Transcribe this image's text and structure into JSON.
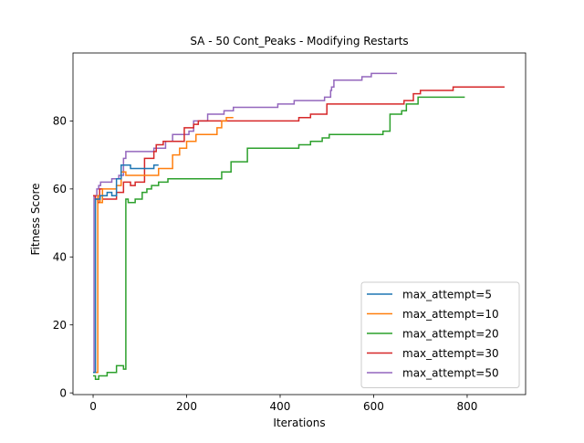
{
  "chart_data": {
    "type": "line",
    "title": "SA - 50 Cont_Peaks - Modifying Restarts",
    "xlabel": "Iterations",
    "ylabel": "Fitness Score",
    "xlim": [
      -43,
      925
    ],
    "ylim": [
      -0.5,
      100
    ],
    "xticks": [
      0,
      200,
      400,
      600,
      800
    ],
    "yticks": [
      0,
      20,
      40,
      60,
      80
    ],
    "grid": false,
    "legend_position": "lower-right",
    "step": "post",
    "series": [
      {
        "name": "max_attempt=50",
        "color": "#9467bd",
        "points": [
          [
            0,
            6
          ],
          [
            2,
            58
          ],
          [
            8,
            60
          ],
          [
            12,
            61
          ],
          [
            16,
            62
          ],
          [
            40,
            63
          ],
          [
            55,
            64
          ],
          [
            65,
            69
          ],
          [
            70,
            71
          ],
          [
            130,
            72
          ],
          [
            155,
            74
          ],
          [
            170,
            76
          ],
          [
            205,
            77
          ],
          [
            215,
            80
          ],
          [
            245,
            82
          ],
          [
            280,
            83
          ],
          [
            300,
            84
          ],
          [
            395,
            85
          ],
          [
            430,
            86
          ],
          [
            495,
            87
          ],
          [
            508,
            89
          ],
          [
            510,
            90
          ],
          [
            515,
            92
          ],
          [
            575,
            93
          ],
          [
            595,
            94
          ],
          [
            650,
            94
          ]
        ]
      },
      {
        "name": "max_attempt=30",
        "color": "#d62728",
        "points": [
          [
            0,
            58
          ],
          [
            5,
            57
          ],
          [
            10,
            56
          ],
          [
            14,
            60
          ],
          [
            20,
            57
          ],
          [
            50,
            59
          ],
          [
            65,
            62
          ],
          [
            80,
            61
          ],
          [
            90,
            62
          ],
          [
            110,
            69
          ],
          [
            130,
            71
          ],
          [
            135,
            73
          ],
          [
            150,
            74
          ],
          [
            195,
            78
          ],
          [
            215,
            79
          ],
          [
            225,
            80
          ],
          [
            440,
            81
          ],
          [
            465,
            82
          ],
          [
            500,
            85
          ],
          [
            665,
            86
          ],
          [
            685,
            88
          ],
          [
            700,
            89
          ],
          [
            770,
            90
          ],
          [
            880,
            90
          ]
        ]
      },
      {
        "name": "max_attempt=20",
        "color": "#2ca02c",
        "points": [
          [
            0,
            5
          ],
          [
            5,
            4
          ],
          [
            12,
            5
          ],
          [
            30,
            6
          ],
          [
            50,
            8
          ],
          [
            65,
            7
          ],
          [
            70,
            57
          ],
          [
            75,
            56
          ],
          [
            90,
            57
          ],
          [
            105,
            59
          ],
          [
            115,
            60
          ],
          [
            125,
            61
          ],
          [
            140,
            62
          ],
          [
            160,
            63
          ],
          [
            275,
            65
          ],
          [
            295,
            68
          ],
          [
            330,
            72
          ],
          [
            440,
            73
          ],
          [
            465,
            74
          ],
          [
            490,
            75
          ],
          [
            505,
            76
          ],
          [
            620,
            77
          ],
          [
            635,
            82
          ],
          [
            660,
            83
          ],
          [
            670,
            85
          ],
          [
            695,
            87
          ],
          [
            795,
            87
          ]
        ]
      },
      {
        "name": "max_attempt=10",
        "color": "#ff7f0e",
        "points": [
          [
            0,
            6
          ],
          [
            10,
            58
          ],
          [
            15,
            56
          ],
          [
            20,
            60
          ],
          [
            50,
            61
          ],
          [
            60,
            65
          ],
          [
            70,
            64
          ],
          [
            140,
            66
          ],
          [
            170,
            70
          ],
          [
            185,
            72
          ],
          [
            200,
            74
          ],
          [
            220,
            76
          ],
          [
            265,
            78
          ],
          [
            275,
            80
          ],
          [
            285,
            81
          ],
          [
            300,
            81
          ]
        ]
      },
      {
        "name": "max_attempt=5",
        "color": "#1f77b4",
        "points": [
          [
            0,
            6
          ],
          [
            5,
            57
          ],
          [
            15,
            58
          ],
          [
            30,
            59
          ],
          [
            40,
            58
          ],
          [
            50,
            63
          ],
          [
            60,
            67
          ],
          [
            80,
            66
          ],
          [
            120,
            66
          ],
          [
            130,
            67
          ],
          [
            140,
            67
          ]
        ]
      }
    ],
    "legend_entries": [
      {
        "name": "max_attempt=5",
        "color": "#1f77b4"
      },
      {
        "name": "max_attempt=10",
        "color": "#ff7f0e"
      },
      {
        "name": "max_attempt=20",
        "color": "#2ca02c"
      },
      {
        "name": "max_attempt=30",
        "color": "#d62728"
      },
      {
        "name": "max_attempt=50",
        "color": "#9467bd"
      }
    ]
  }
}
